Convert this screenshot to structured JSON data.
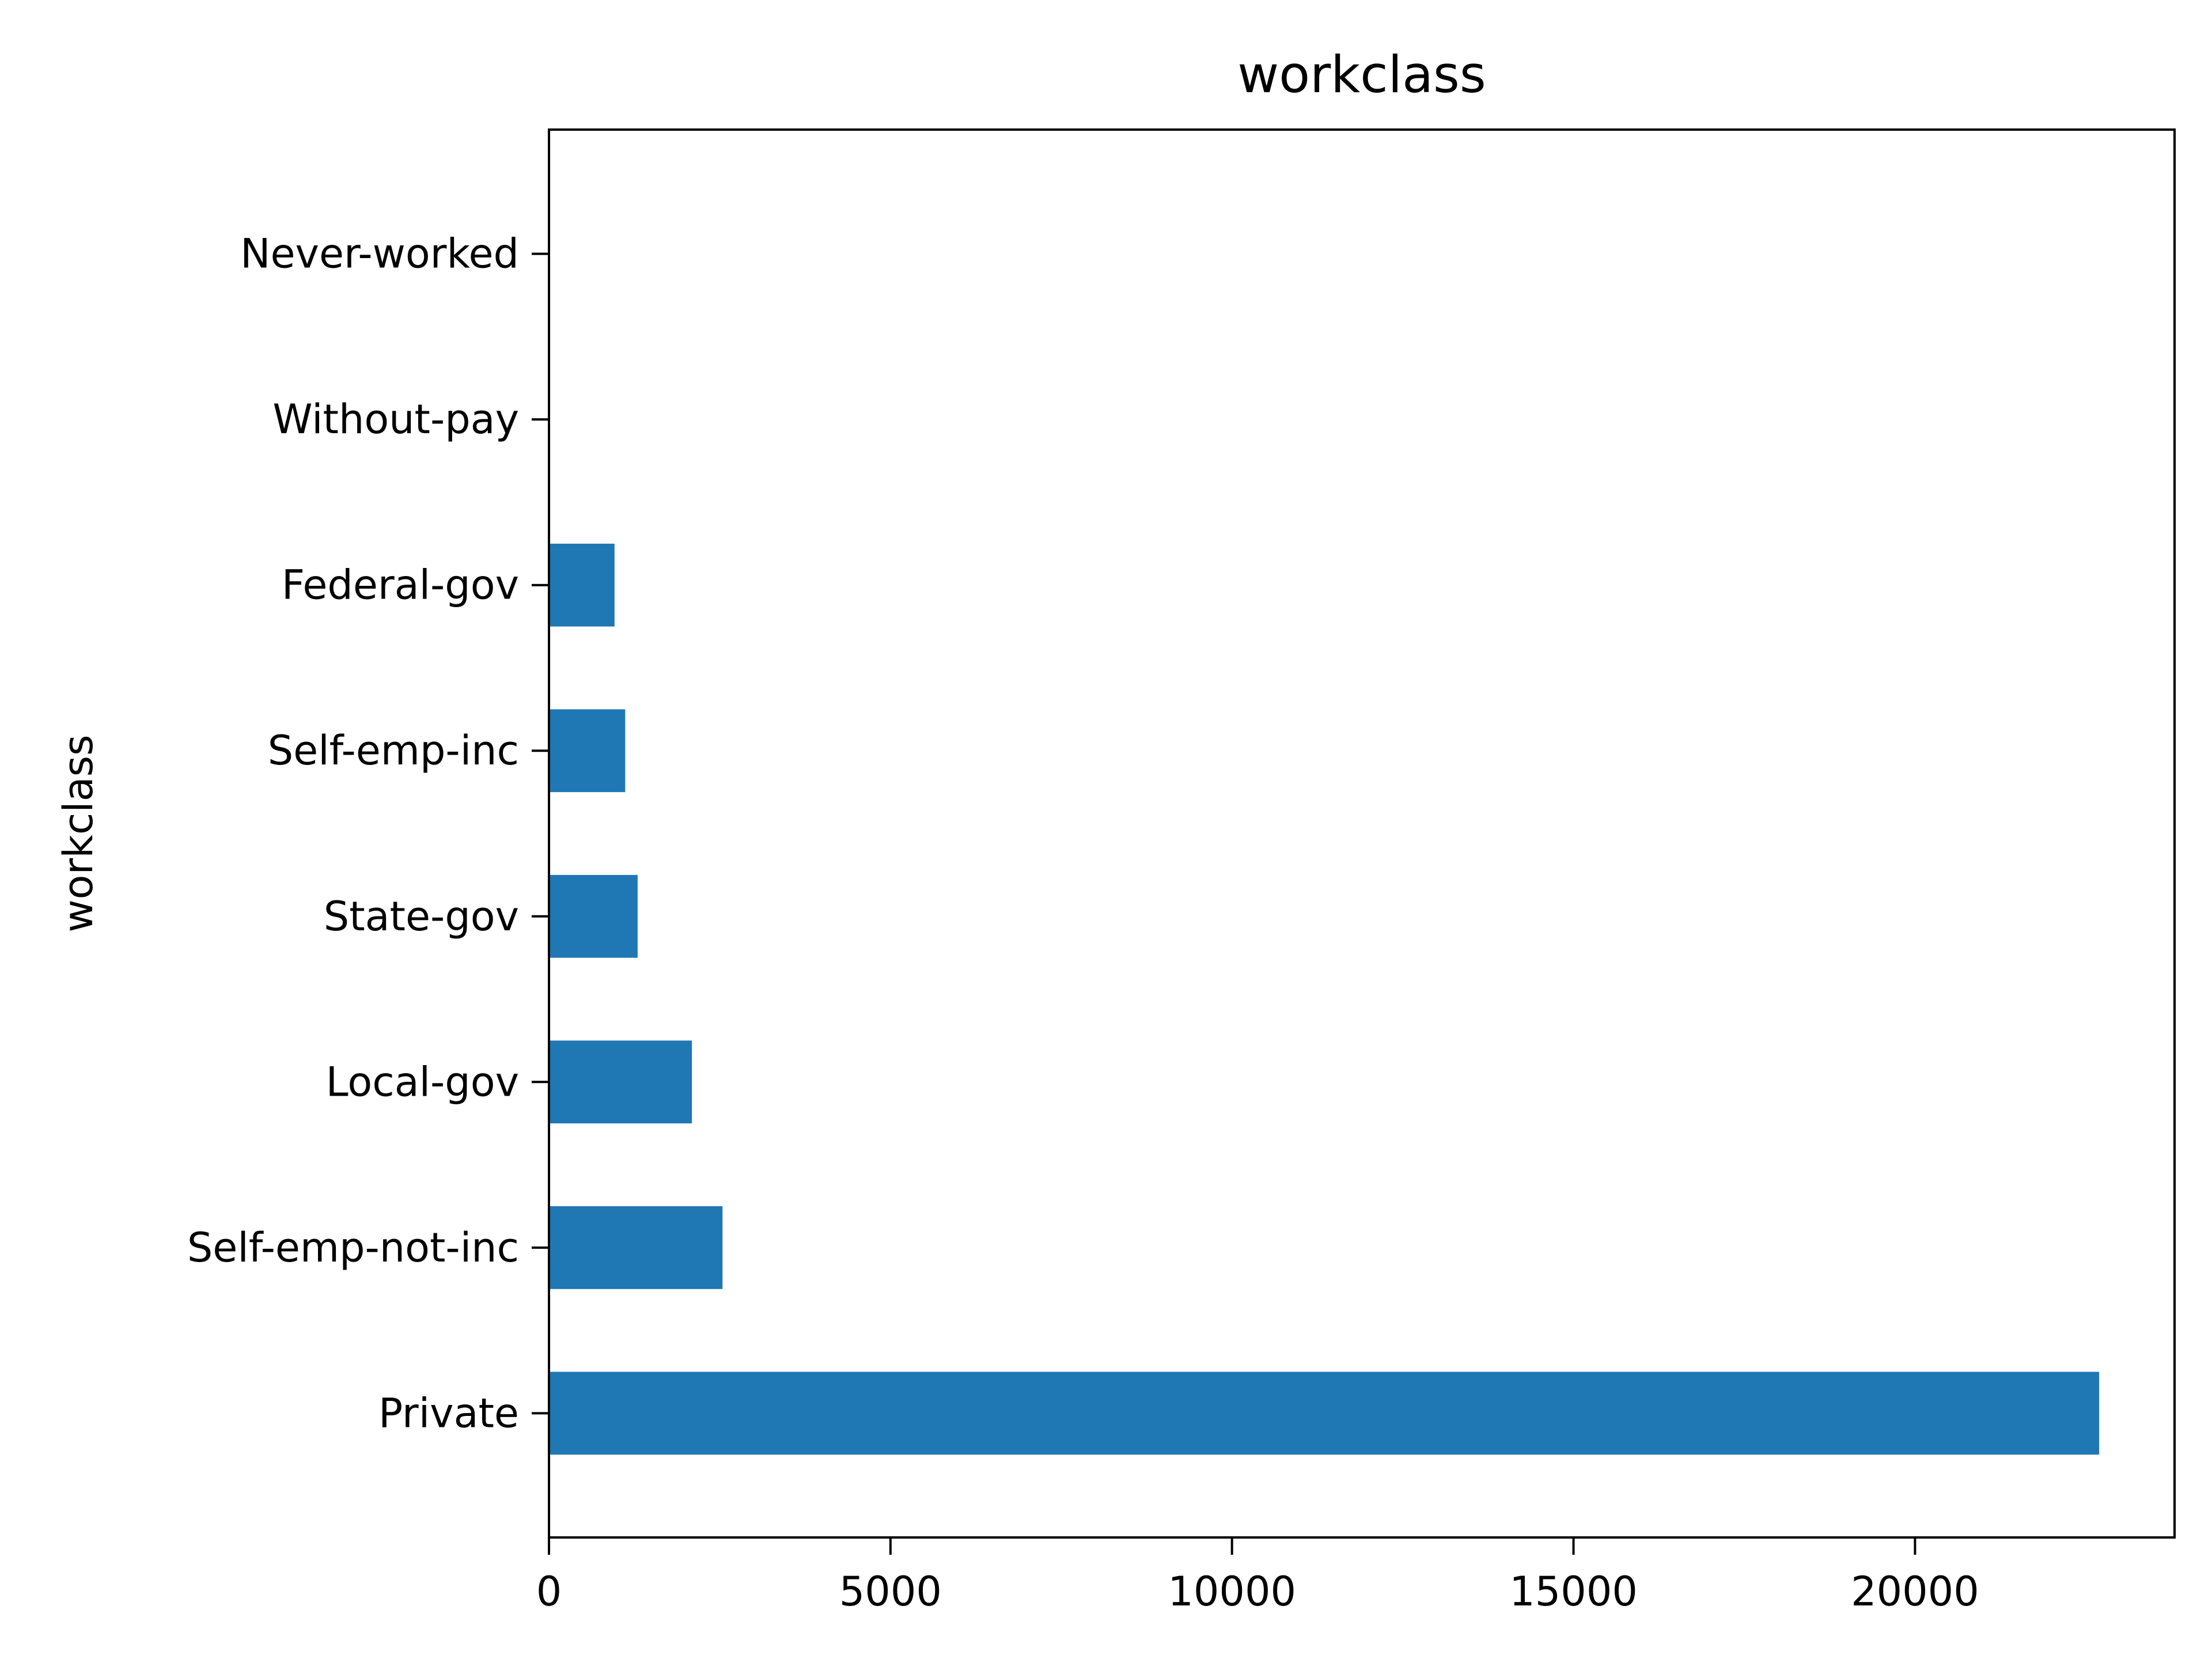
{
  "chart_data": {
    "type": "bar",
    "orientation": "horizontal",
    "title": "workclass",
    "xlabel": "",
    "ylabel": "workclass",
    "categories": [
      "Private",
      "Self-emp-not-inc",
      "Local-gov",
      "State-gov",
      "Self-emp-inc",
      "Federal-gov",
      "Without-pay",
      "Never-worked"
    ],
    "values": [
      22696,
      2541,
      2093,
      1298,
      1116,
      960,
      14,
      7
    ],
    "xlim": [
      0,
      23800
    ],
    "xticks": [
      0,
      5000,
      10000,
      15000,
      20000
    ],
    "xtick_labels": [
      "0",
      "5000",
      "10000",
      "15000",
      "20000"
    ],
    "grid": false,
    "legend": "none",
    "bar_color": "#1f77b4"
  }
}
